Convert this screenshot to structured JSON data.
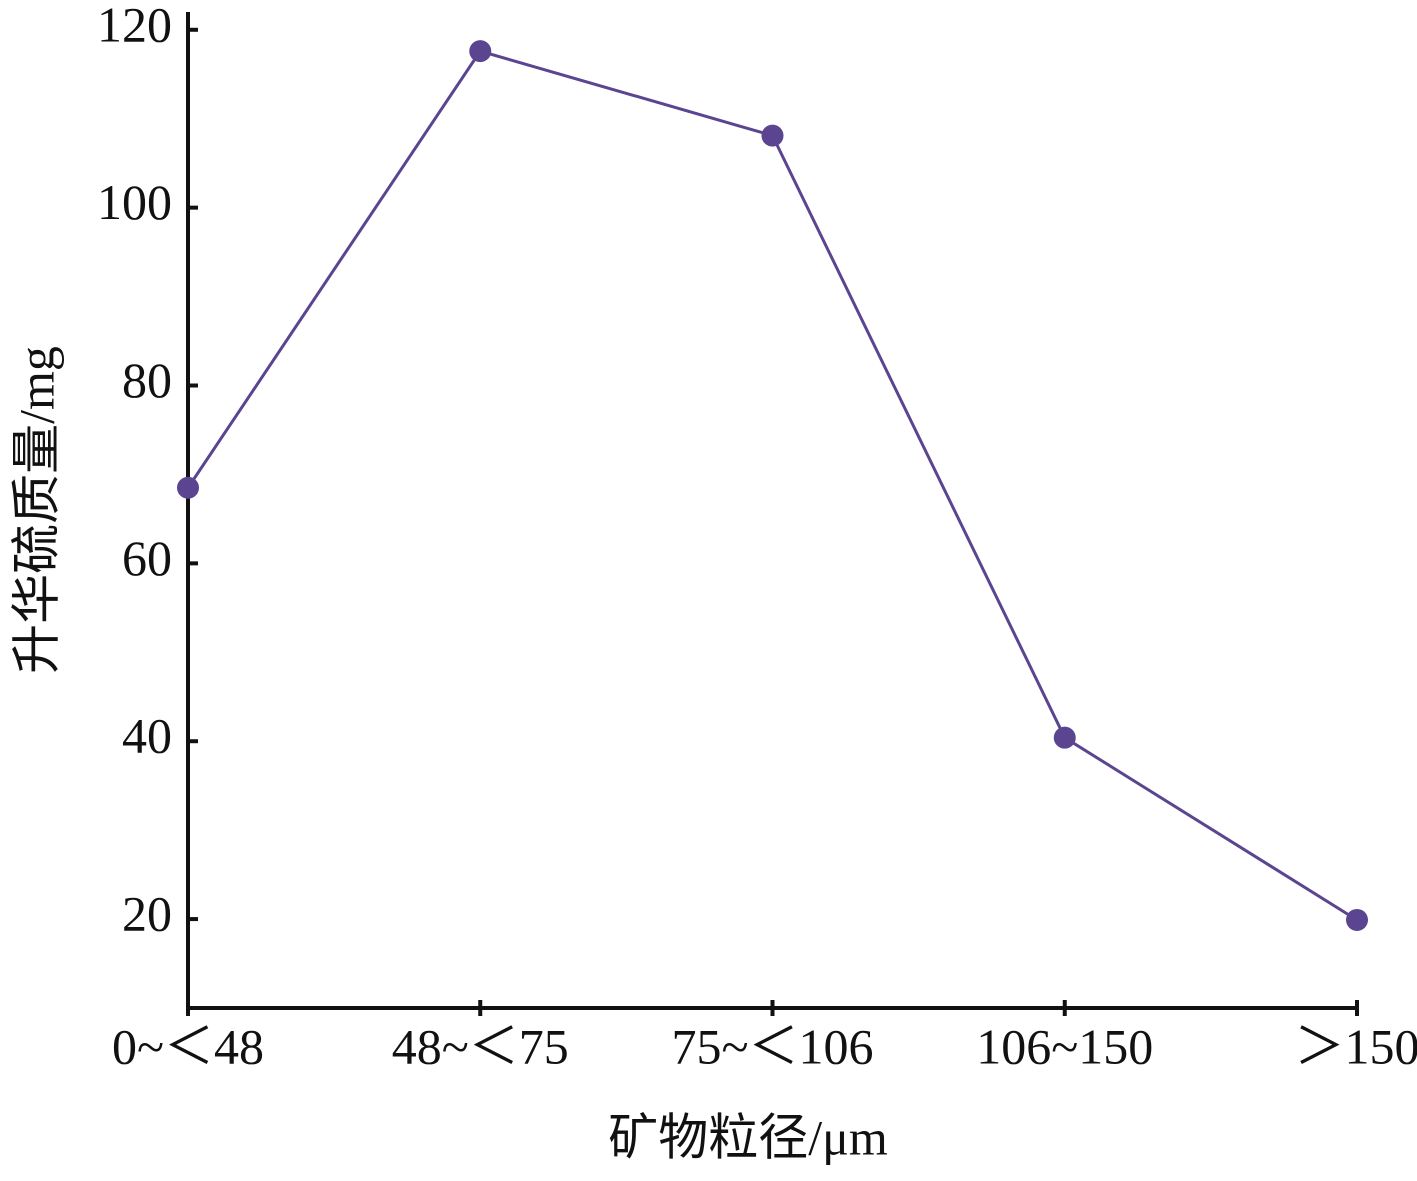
{
  "chart_data": {
    "type": "line",
    "x_label": "矿物粒径/μm",
    "y_label": "升华硫质量/mg",
    "categories": [
      "0~＜48",
      "48~＜75",
      "75~＜106",
      "106~150",
      "＞150"
    ],
    "series": [
      {
        "name": "升华硫质量",
        "color": "#5b4590",
        "values": [
          68.5,
          117.6,
          108.1,
          40.4,
          19.9
        ]
      }
    ],
    "ylim": [
      10,
      122
    ],
    "yticks": [
      20,
      40,
      60,
      80,
      100,
      120
    ],
    "grid": false
  }
}
